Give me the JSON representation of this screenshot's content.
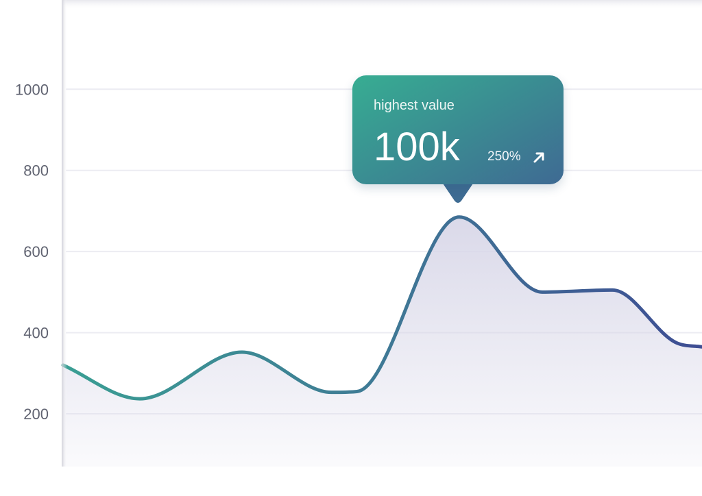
{
  "chart_data": {
    "type": "area",
    "title": "",
    "xlabel": "",
    "ylabel": "",
    "ylim": [
      70,
      1220
    ],
    "xlim": [
      0,
      100
    ],
    "yticks": [
      200,
      400,
      600,
      800,
      1000
    ],
    "grid": true,
    "legend": "none",
    "x": [
      0,
      12,
      28,
      42,
      46,
      62,
      75,
      86,
      96,
      100
    ],
    "values": [
      320,
      237,
      352,
      253,
      255,
      685,
      500,
      505,
      375,
      365
    ],
    "colors": {
      "line_start": "#3a9e93",
      "line_mid": "#3f7595",
      "line_end": "#3e4d93",
      "area": "#d8d7e8",
      "grid": "#ececf2",
      "tick_text": "#5f6270",
      "tooltip_start": "#37ad92",
      "tooltip_end": "#3f6a93"
    }
  },
  "tooltip": {
    "label": "highest value",
    "value": "100k",
    "change": "250%",
    "icon": "arrow-up-right-icon"
  }
}
